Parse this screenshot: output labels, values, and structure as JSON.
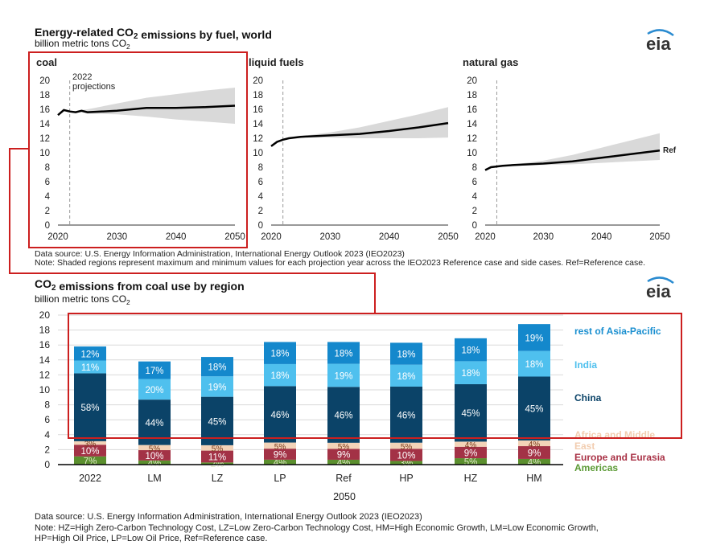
{
  "top": {
    "title": "Energy-related CO2 emissions by fuel, world",
    "subtitle": "billion metric tons CO2",
    "logo": "eia",
    "source": "Data source: U.S. Energy Information Administration, International Energy Outlook 2023 (IEO2023)",
    "note": "Note: Shaded regions represent maximum and minimum values for each projection year across the IEO2023 Reference case and side cases. Ref=Reference case.",
    "projection_label_year": "2022",
    "projection_label": "projections",
    "ref_label": "Ref"
  },
  "bottom": {
    "title": "CO2 emissions from coal use by region",
    "subtitle": "billion metric tons CO2",
    "logo": "eia",
    "group_label": "2050",
    "source": "Data source: U.S. Energy Information Administration, International Energy Outlook 2023 (IEO2023)",
    "note1": "Note: HZ=High Zero-Carbon Technology Cost, LZ=Low Zero-Carbon Technology Cost, HM=High Economic Growth, LM=Low Economic Growth,",
    "note2": "HP=High Oil Price, LP=Low Oil Price, Ref=Reference case."
  },
  "chart_data": [
    {
      "type": "area",
      "title": "coal",
      "ylim": [
        0,
        20
      ],
      "yticks": [
        0,
        2,
        4,
        6,
        8,
        10,
        12,
        14,
        16,
        18,
        20
      ],
      "xticks": [
        2020,
        2030,
        2040,
        2050
      ],
      "xlim": [
        2020,
        2050
      ],
      "x": [
        2020,
        2021,
        2022,
        2023,
        2024,
        2025,
        2030,
        2035,
        2040,
        2045,
        2050
      ],
      "ref": [
        15.2,
        15.9,
        15.7,
        15.6,
        15.8,
        15.6,
        15.8,
        16.2,
        16.2,
        16.3,
        16.5
      ],
      "upper": [
        15.2,
        15.9,
        15.7,
        15.6,
        15.9,
        16.0,
        16.8,
        17.6,
        18.1,
        18.6,
        19.0
      ],
      "lower": [
        15.2,
        15.9,
        15.7,
        15.6,
        15.6,
        15.4,
        15.3,
        15.0,
        14.6,
        14.3,
        14.0
      ]
    },
    {
      "type": "area",
      "title": "liquid fuels",
      "ylim": [
        0,
        20
      ],
      "yticks": [
        0,
        2,
        4,
        6,
        8,
        10,
        12,
        14,
        16,
        18,
        20
      ],
      "xticks": [
        2020,
        2030,
        2040,
        2050
      ],
      "xlim": [
        2020,
        2050
      ],
      "x": [
        2020,
        2021,
        2022,
        2023,
        2025,
        2030,
        2035,
        2040,
        2045,
        2050
      ],
      "ref": [
        10.9,
        11.5,
        11.8,
        12.0,
        12.2,
        12.4,
        12.6,
        13.0,
        13.5,
        14.1
      ],
      "upper": [
        10.9,
        11.5,
        11.8,
        12.0,
        12.3,
        12.8,
        13.5,
        14.4,
        15.3,
        16.3
      ],
      "lower": [
        10.9,
        11.5,
        11.8,
        12.0,
        12.1,
        12.1,
        12.0,
        12.0,
        12.0,
        12.1
      ]
    },
    {
      "type": "area",
      "title": "natural gas",
      "ylim": [
        0,
        20
      ],
      "yticks": [
        0,
        2,
        4,
        6,
        8,
        10,
        12,
        14,
        16,
        18,
        20
      ],
      "xticks": [
        2020,
        2030,
        2040,
        2050
      ],
      "xlim": [
        2020,
        2050
      ],
      "x": [
        2020,
        2021,
        2022,
        2023,
        2025,
        2030,
        2035,
        2040,
        2045,
        2050
      ],
      "ref": [
        7.6,
        8.0,
        8.1,
        8.2,
        8.3,
        8.5,
        8.8,
        9.3,
        9.8,
        10.3
      ],
      "upper": [
        7.6,
        8.0,
        8.1,
        8.2,
        8.4,
        8.9,
        9.7,
        10.7,
        11.7,
        12.7
      ],
      "lower": [
        7.6,
        8.0,
        8.1,
        8.2,
        8.2,
        8.3,
        8.4,
        8.6,
        8.8,
        9.0
      ]
    },
    {
      "type": "bar",
      "stacked": true,
      "ylim": [
        0,
        20
      ],
      "yticks": [
        0,
        2,
        4,
        6,
        8,
        10,
        12,
        14,
        16,
        18,
        20
      ],
      "categories": [
        "2022",
        "LM",
        "LZ",
        "LP",
        "Ref",
        "HP",
        "HZ",
        "HM"
      ],
      "totals": [
        15.8,
        13.8,
        14.4,
        16.4,
        16.4,
        16.3,
        16.9,
        18.8
      ],
      "series": [
        {
          "name": "Americas",
          "color": "#5b8f2e",
          "text": "#dfe9c8",
          "shares": [
            7,
            4,
            2,
            4,
            4,
            3,
            5,
            4
          ]
        },
        {
          "name": "Europe and Eurasia",
          "color": "#a33246",
          "text": "#ffffff",
          "shares": [
            10,
            10,
            11,
            9,
            9,
            10,
            9,
            9
          ]
        },
        {
          "name": "Africa and Middle East",
          "color": "#f3d3b8",
          "text": "#7a3a1a",
          "shares": [
            3,
            5,
            5,
            5,
            5,
            5,
            4,
            4
          ]
        },
        {
          "name": "China",
          "color": "#0b4368",
          "text": "#ffffff",
          "shares": [
            58,
            44,
            45,
            46,
            46,
            46,
            45,
            45
          ]
        },
        {
          "name": "India",
          "color": "#4fc0ee",
          "text": "#ffffff",
          "shares": [
            11,
            20,
            19,
            18,
            19,
            18,
            18,
            18
          ]
        },
        {
          "name": "rest of Asia-Pacific",
          "color": "#1488cc",
          "text": "#ffffff",
          "shares": [
            12,
            17,
            18,
            18,
            18,
            18,
            18,
            19
          ]
        }
      ],
      "legend_colors": {
        "Americas": "#5b9a35",
        "Europe and Eurasia": "#a93246",
        "Africa and Middle East": "#f2cdb0",
        "China": "#0b4368",
        "India": "#4fc0ee",
        "rest of Asia-Pacific": "#1a8fd0"
      }
    }
  ],
  "highlight_color": "#cc1f1f"
}
